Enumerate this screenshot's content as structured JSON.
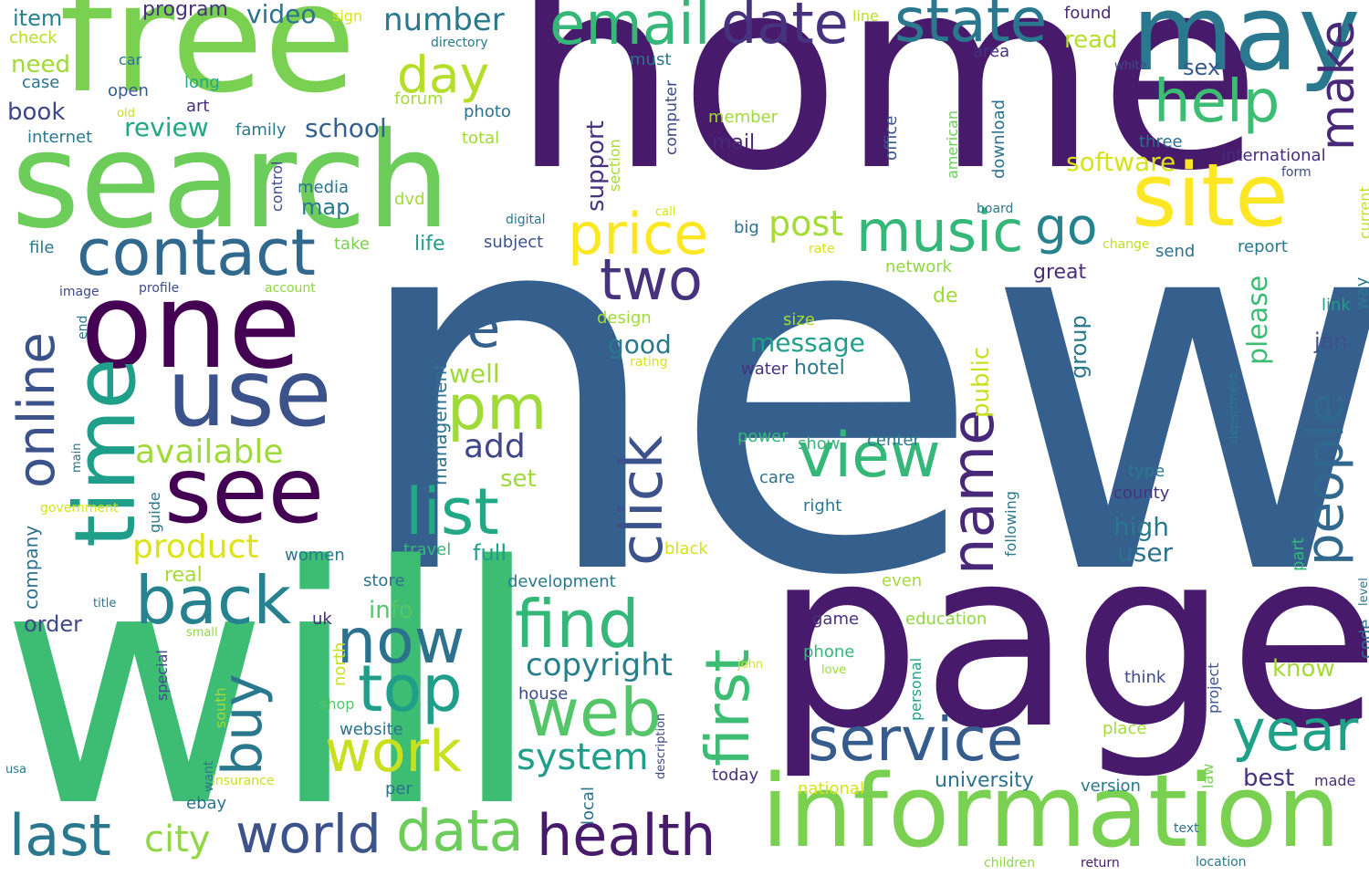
{
  "words": [
    {
      "text": "new",
      "color": "#355f8d"
    },
    {
      "text": "will",
      "color": "#3dbc74"
    },
    {
      "text": "home",
      "color": "#481a6c"
    },
    {
      "text": "page",
      "color": "#481a6c"
    },
    {
      "text": "search",
      "color": "#6ccd5a"
    },
    {
      "text": "free",
      "color": "#7ad151"
    },
    {
      "text": "information",
      "color": "#7ad151"
    },
    {
      "text": "may",
      "color": "#2a788e"
    },
    {
      "text": "one",
      "color": "#440154"
    },
    {
      "text": "time",
      "color": "#1f9e89"
    },
    {
      "text": "use",
      "color": "#3b528b"
    },
    {
      "text": "see",
      "color": "#440154"
    },
    {
      "text": "site",
      "color": "#fde725"
    },
    {
      "text": "contact",
      "color": "#31688e"
    },
    {
      "text": "online",
      "color": "#3b528b"
    },
    {
      "text": "view",
      "color": "#35b779"
    },
    {
      "text": "email",
      "color": "#35b779"
    },
    {
      "text": "state",
      "color": "#2a788e"
    },
    {
      "text": "date",
      "color": "#46327e"
    },
    {
      "text": "day",
      "color": "#b5de2b"
    },
    {
      "text": "help",
      "color": "#3dbc74"
    },
    {
      "text": "make",
      "color": "#482878"
    },
    {
      "text": "price",
      "color": "#fde725"
    },
    {
      "text": "music",
      "color": "#35b779"
    },
    {
      "text": "go",
      "color": "#26828e"
    },
    {
      "text": "two",
      "color": "#46327e"
    },
    {
      "text": "pm",
      "color": "#a0da39"
    },
    {
      "text": "re",
      "color": "#355f8d"
    },
    {
      "text": "click",
      "color": "#3b528b"
    },
    {
      "text": "list",
      "color": "#22a884"
    },
    {
      "text": "find",
      "color": "#35b779"
    },
    {
      "text": "now",
      "color": "#2c728e"
    },
    {
      "text": "back",
      "color": "#26828e"
    },
    {
      "text": "buy",
      "color": "#2a788e"
    },
    {
      "text": "top",
      "color": "#1f9e89"
    },
    {
      "text": "web",
      "color": "#54c568"
    },
    {
      "text": "work",
      "color": "#c8e020"
    },
    {
      "text": "first",
      "color": "#3dbc74"
    },
    {
      "text": "name",
      "color": "#482878"
    },
    {
      "text": "people",
      "color": "#31688e"
    },
    {
      "text": "service",
      "color": "#365c8d"
    },
    {
      "text": "year",
      "color": "#1fa187"
    },
    {
      "text": "last",
      "color": "#2a788e"
    },
    {
      "text": "world",
      "color": "#3b528b"
    },
    {
      "text": "data",
      "color": "#6ccd5a"
    },
    {
      "text": "health",
      "color": "#481a6c"
    },
    {
      "text": "city",
      "color": "#90d743"
    },
    {
      "text": "system",
      "color": "#1f9e89"
    },
    {
      "text": "available",
      "color": "#a0da39"
    },
    {
      "text": "product",
      "color": "#dde318"
    },
    {
      "text": "add",
      "color": "#404688"
    },
    {
      "text": "copyright",
      "color": "#277f8e"
    },
    {
      "text": "post",
      "color": "#a5db36"
    },
    {
      "text": "number",
      "color": "#2a788e"
    },
    {
      "text": "video",
      "color": "#2c728e"
    },
    {
      "text": "program",
      "color": "#46327e"
    },
    {
      "text": "item",
      "color": "#26828e"
    },
    {
      "text": "check",
      "color": "#b5de2b"
    },
    {
      "text": "need",
      "color": "#a0da39"
    },
    {
      "text": "case",
      "color": "#2c728e"
    },
    {
      "text": "book",
      "color": "#404688"
    },
    {
      "text": "internet",
      "color": "#2a788e"
    },
    {
      "text": "car",
      "color": "#2c728e"
    },
    {
      "text": "open",
      "color": "#375a8c"
    },
    {
      "text": "old",
      "color": "#c8e020"
    },
    {
      "text": "long",
      "color": "#22a884"
    },
    {
      "text": "art",
      "color": "#472d7b"
    },
    {
      "text": "review",
      "color": "#22a884"
    },
    {
      "text": "family",
      "color": "#2a788e"
    },
    {
      "text": "school",
      "color": "#355f8d"
    },
    {
      "text": "photo",
      "color": "#2c728e"
    },
    {
      "text": "forum",
      "color": "#a5db36"
    },
    {
      "text": "total",
      "color": "#a0da39"
    },
    {
      "text": "section",
      "color": "#a5db36"
    },
    {
      "text": "directory",
      "color": "#2a788e"
    },
    {
      "text": "sign",
      "color": "#d8e219"
    },
    {
      "text": "must",
      "color": "#2c728e"
    },
    {
      "text": "computer",
      "color": "#3e4989"
    },
    {
      "text": "support",
      "color": "#46327e"
    },
    {
      "text": "mail",
      "color": "#482878"
    },
    {
      "text": "member",
      "color": "#a0da39"
    },
    {
      "text": "line",
      "color": "#bddf26"
    },
    {
      "text": "found",
      "color": "#482878"
    },
    {
      "text": "area",
      "color": "#46327e"
    },
    {
      "text": "read",
      "color": "#b5de2b"
    },
    {
      "text": "sex",
      "color": "#38588c"
    },
    {
      "text": "white",
      "color": "#3e4989"
    },
    {
      "text": "three",
      "color": "#306a8e"
    },
    {
      "text": "international",
      "color": "#472d7b"
    },
    {
      "text": "form",
      "color": "#3e4989"
    },
    {
      "text": "software",
      "color": "#d8e219"
    },
    {
      "text": "office",
      "color": "#39568c"
    },
    {
      "text": "american",
      "color": "#6ccd5a"
    },
    {
      "text": "download",
      "color": "#2c728e"
    },
    {
      "text": "board",
      "color": "#2a788e"
    },
    {
      "text": "current",
      "color": "#bddf26"
    },
    {
      "text": "call",
      "color": "#d8e219"
    },
    {
      "text": "big",
      "color": "#2c728e"
    },
    {
      "text": "digital",
      "color": "#2a788e"
    },
    {
      "text": "media",
      "color": "#2c728e"
    },
    {
      "text": "map",
      "color": "#2a788e"
    },
    {
      "text": "dvd",
      "color": "#a0da39"
    },
    {
      "text": "control",
      "color": "#3e4989"
    },
    {
      "text": "take",
      "color": "#7ad151"
    },
    {
      "text": "life",
      "color": "#1f9e89"
    },
    {
      "text": "subject",
      "color": "#3b528b"
    },
    {
      "text": "file",
      "color": "#2a788e"
    },
    {
      "text": "image",
      "color": "#3e4989"
    },
    {
      "text": "profile",
      "color": "#3e4989"
    },
    {
      "text": "account",
      "color": "#90d743"
    },
    {
      "text": "end",
      "color": "#2a788e"
    },
    {
      "text": "rate",
      "color": "#d8e219"
    },
    {
      "text": "network",
      "color": "#90d743"
    },
    {
      "text": "change",
      "color": "#bddf26"
    },
    {
      "text": "send",
      "color": "#2c728e"
    },
    {
      "text": "report",
      "color": "#2a788e"
    },
    {
      "text": "way",
      "color": "#2a788e"
    },
    {
      "text": "link",
      "color": "#1f9e89"
    },
    {
      "text": "great",
      "color": "#472d7b"
    },
    {
      "text": "de",
      "color": "#a0da39"
    },
    {
      "text": "please",
      "color": "#3dbc74"
    },
    {
      "text": "group",
      "color": "#2a788e"
    },
    {
      "text": "jan",
      "color": "#3b528b"
    },
    {
      "text": "good",
      "color": "#2a788e"
    },
    {
      "text": "message",
      "color": "#1f9e89"
    },
    {
      "text": "hotel",
      "color": "#2a788e"
    },
    {
      "text": "public",
      "color": "#c8e020"
    },
    {
      "text": "design",
      "color": "#a0da39"
    },
    {
      "text": "size",
      "color": "#a5db36"
    },
    {
      "text": "rating",
      "color": "#d8e219"
    },
    {
      "text": "water",
      "color": "#46327e"
    },
    {
      "text": "department",
      "color": "#2a788e"
    },
    {
      "text": "well",
      "color": "#a0da39"
    },
    {
      "text": "management",
      "color": "#2c728e"
    },
    {
      "text": "set",
      "color": "#a0da39"
    },
    {
      "text": "power",
      "color": "#35b779"
    },
    {
      "text": "show",
      "color": "#35b779"
    },
    {
      "text": "center",
      "color": "#2a788e"
    },
    {
      "text": "care",
      "color": "#2c728e"
    },
    {
      "text": "right",
      "color": "#2a788e"
    },
    {
      "text": "type",
      "color": "#2a788e"
    },
    {
      "text": "county",
      "color": "#46327e"
    },
    {
      "text": "main",
      "color": "#2c728e"
    },
    {
      "text": "government",
      "color": "#d8e219"
    },
    {
      "text": "guide",
      "color": "#2a788e"
    },
    {
      "text": "company",
      "color": "#2c728e"
    },
    {
      "text": "women",
      "color": "#2a788e"
    },
    {
      "text": "full",
      "color": "#1f9e89"
    },
    {
      "text": "travel",
      "color": "#35b779"
    },
    {
      "text": "following",
      "color": "#2a788e"
    },
    {
      "text": "black",
      "color": "#d8e219"
    },
    {
      "text": "high",
      "color": "#2a788e"
    },
    {
      "text": "user",
      "color": "#2c728e"
    },
    {
      "text": "part",
      "color": "#35b779"
    },
    {
      "text": "real",
      "color": "#a5db36"
    },
    {
      "text": "store",
      "color": "#2c728e"
    },
    {
      "text": "development",
      "color": "#2a788e"
    },
    {
      "text": "even",
      "color": "#a5db36"
    },
    {
      "text": "level",
      "color": "#2c728e"
    },
    {
      "text": "info",
      "color": "#54c568"
    },
    {
      "text": "order",
      "color": "#3e4989"
    },
    {
      "text": "title",
      "color": "#2c728e"
    },
    {
      "text": "small",
      "color": "#90d743"
    },
    {
      "text": "uk",
      "color": "#472d7b"
    },
    {
      "text": "game",
      "color": "#46327e"
    },
    {
      "text": "education",
      "color": "#90d743"
    },
    {
      "text": "code",
      "color": "#2c728e"
    },
    {
      "text": "special",
      "color": "#3e4989"
    },
    {
      "text": "north",
      "color": "#c8e020"
    },
    {
      "text": "john",
      "color": "#d8e219"
    },
    {
      "text": "personal",
      "color": "#1f9e89"
    },
    {
      "text": "phone",
      "color": "#35b779"
    },
    {
      "text": "love",
      "color": "#a0da39"
    },
    {
      "text": "know",
      "color": "#a5db36"
    },
    {
      "text": "project",
      "color": "#3b528b"
    },
    {
      "text": "think",
      "color": "#3e4989"
    },
    {
      "text": "house",
      "color": "#3e4989"
    },
    {
      "text": "south",
      "color": "#a0da39"
    },
    {
      "text": "shop",
      "color": "#54c568"
    },
    {
      "text": "website",
      "color": "#2c728e"
    },
    {
      "text": "description",
      "color": "#3e4989"
    },
    {
      "text": "place",
      "color": "#a5db36"
    },
    {
      "text": "want",
      "color": "#2a788e"
    },
    {
      "text": "usa",
      "color": "#2a788e"
    },
    {
      "text": "insurance",
      "color": "#c8e020"
    },
    {
      "text": "today",
      "color": "#46327e"
    },
    {
      "text": "university",
      "color": "#2c728e"
    },
    {
      "text": "best",
      "color": "#46327e"
    },
    {
      "text": "made",
      "color": "#46327e"
    },
    {
      "text": "law",
      "color": "#7ad151"
    },
    {
      "text": "version",
      "color": "#2a788e"
    },
    {
      "text": "national",
      "color": "#d8e219"
    },
    {
      "text": "per",
      "color": "#2c728e"
    },
    {
      "text": "local",
      "color": "#2c728e"
    },
    {
      "text": "ebay",
      "color": "#2c728e"
    },
    {
      "text": "text",
      "color": "#2c728e"
    },
    {
      "text": "children",
      "color": "#90d743"
    },
    {
      "text": "return",
      "color": "#481a6c"
    },
    {
      "text": "location",
      "color": "#2a788e"
    }
  ]
}
